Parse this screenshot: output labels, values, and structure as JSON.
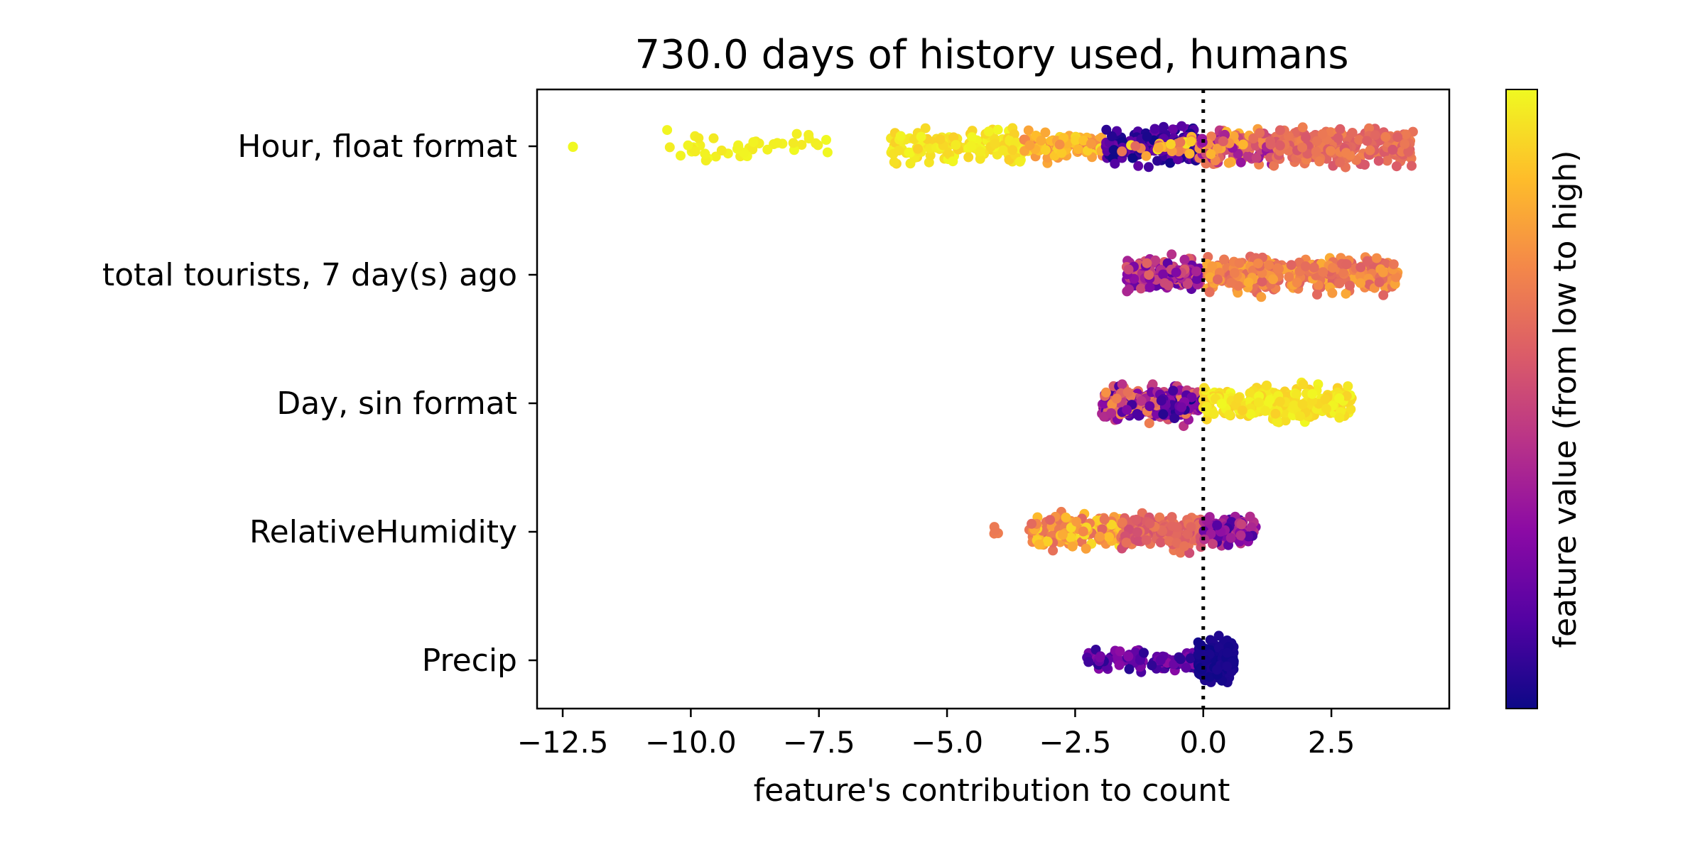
{
  "chart_data": {
    "type": "scatter",
    "title": "730.0 days of history used, humans",
    "xlabel": "feature's contribution to count",
    "ylabel": "",
    "xlim": [
      -13.0,
      4.8
    ],
    "xticks": [
      -12.5,
      -10.0,
      -7.5,
      -5.0,
      -2.5,
      0.0,
      2.5
    ],
    "xtick_labels": [
      "−12.5",
      "−10.0",
      "−7.5",
      "−5.0",
      "−2.5",
      "0.0",
      "2.5"
    ],
    "reference_line": {
      "x": 0.0,
      "style": "dotted"
    },
    "grid": false,
    "colorbar": {
      "label": "feature value (from low to high)",
      "colormap": "plasma",
      "colors": [
        "#0d0887",
        "#5302a3",
        "#8b0aa5",
        "#b83289",
        "#db5c68",
        "#f48849",
        "#febd2a",
        "#f0f921"
      ]
    },
    "categories": [
      "Hour, float format",
      "total tourists, 7 day(s) ago",
      "Day, sin format",
      "RelativeHumidity",
      "Precip"
    ],
    "series": [
      {
        "feature": "Hour, float format",
        "clusters": [
          {
            "x_min": -12.3,
            "x_max": -12.3,
            "color_min": 0.98,
            "color_max": 1.0,
            "count": 2,
            "spread": 0.1
          },
          {
            "x_min": -10.8,
            "x_max": -7.3,
            "color_min": 0.96,
            "color_max": 1.0,
            "count": 45,
            "spread": 0.9
          },
          {
            "x_min": -6.1,
            "x_max": -3.5,
            "color_min": 0.9,
            "color_max": 1.0,
            "count": 150,
            "spread": 1.0
          },
          {
            "x_min": -3.5,
            "x_max": -1.9,
            "color_min": 0.68,
            "color_max": 0.95,
            "count": 90,
            "spread": 0.8
          },
          {
            "x_min": -1.9,
            "x_max": -0.1,
            "color_min": 0.0,
            "color_max": 0.22,
            "count": 170,
            "spread": 1.0
          },
          {
            "x_min": -1.6,
            "x_max": -0.2,
            "color_min": 0.55,
            "color_max": 0.95,
            "count": 25,
            "spread": 0.8
          },
          {
            "x_min": -0.1,
            "x_max": 1.4,
            "color_min": 0.3,
            "color_max": 0.85,
            "count": 150,
            "spread": 1.0
          },
          {
            "x_min": 1.3,
            "x_max": 4.1,
            "color_min": 0.55,
            "color_max": 0.7,
            "count": 220,
            "spread": 1.0
          }
        ]
      },
      {
        "feature": "total tourists, 7 day(s) ago",
        "clusters": [
          {
            "x_min": -1.5,
            "x_max": -0.05,
            "color_min": 0.15,
            "color_max": 0.6,
            "count": 170,
            "spread": 1.0
          },
          {
            "x_min": 0.05,
            "x_max": 3.8,
            "color_min": 0.58,
            "color_max": 0.82,
            "count": 340,
            "spread": 1.0
          }
        ]
      },
      {
        "feature": "Day, sin format",
        "clusters": [
          {
            "x_min": -2.0,
            "x_max": -0.1,
            "color_min": 0.1,
            "color_max": 0.75,
            "count": 230,
            "spread": 1.0
          },
          {
            "x_min": -0.9,
            "x_max": 0.0,
            "color_min": 0.0,
            "color_max": 0.3,
            "count": 40,
            "spread": 0.8
          },
          {
            "x_min": 0.0,
            "x_max": 2.9,
            "color_min": 0.9,
            "color_max": 1.0,
            "count": 260,
            "spread": 1.0
          }
        ]
      },
      {
        "feature": "RelativeHumidity",
        "clusters": [
          {
            "x_min": -4.1,
            "x_max": -4.0,
            "color_min": 0.65,
            "color_max": 0.7,
            "count": 4,
            "spread": 0.3
          },
          {
            "x_min": -3.4,
            "x_max": -1.6,
            "color_min": 0.6,
            "color_max": 0.95,
            "count": 160,
            "spread": 1.0
          },
          {
            "x_min": -1.6,
            "x_max": 0.0,
            "color_min": 0.52,
            "color_max": 0.68,
            "count": 150,
            "spread": 1.0
          },
          {
            "x_min": 0.0,
            "x_max": 1.05,
            "color_min": 0.1,
            "color_max": 0.5,
            "count": 110,
            "spread": 0.9
          }
        ]
      },
      {
        "feature": "Precip",
        "clusters": [
          {
            "x_min": -2.3,
            "x_max": -0.1,
            "color_min": 0.05,
            "color_max": 0.3,
            "count": 110,
            "spread": 0.7
          },
          {
            "x_min": -0.1,
            "x_max": 0.6,
            "color_min": 0.0,
            "color_max": 0.04,
            "count": 260,
            "spread": 1.1
          }
        ]
      }
    ]
  }
}
